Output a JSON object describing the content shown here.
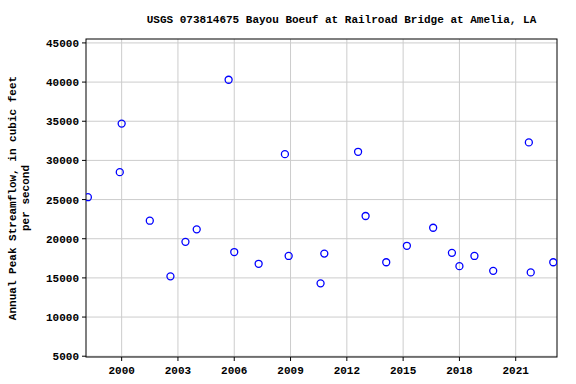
{
  "chart_data": {
    "type": "scatter",
    "title": "USGS 073814675 Bayou Boeuf at Railroad Bridge at Amelia, LA",
    "ylabel": "Annual Peak Streamflow, in cubic feet per second",
    "x": [
      1998.2,
      1999.9,
      2000.0,
      2001.5,
      2002.6,
      2003.4,
      2004.0,
      2005.7,
      2006.0,
      2007.3,
      2008.7,
      2008.9,
      2010.6,
      2010.8,
      2012.6,
      2013.0,
      2014.1,
      2015.2,
      2016.6,
      2017.6,
      2018.0,
      2018.8,
      2019.8,
      2021.7,
      2021.8,
      2023.0
    ],
    "values": [
      25300,
      28500,
      34700,
      22300,
      15200,
      19600,
      21200,
      40300,
      18300,
      16800,
      30800,
      17800,
      14300,
      18100,
      31100,
      22900,
      17000,
      19100,
      21400,
      18200,
      16500,
      17800,
      15900,
      32300,
      15700,
      17000
    ],
    "color": "#0000ff",
    "marker": "circle",
    "xlim": [
      1998.1,
      2023.2
    ],
    "xticks": [
      2000,
      2003,
      2006,
      2009,
      2012,
      2015,
      2018,
      2021
    ],
    "ylim": [
      4900,
      45500
    ],
    "yticks": [
      5000,
      10000,
      15000,
      20000,
      25000,
      30000,
      35000,
      40000,
      45000
    ],
    "grid": true
  }
}
